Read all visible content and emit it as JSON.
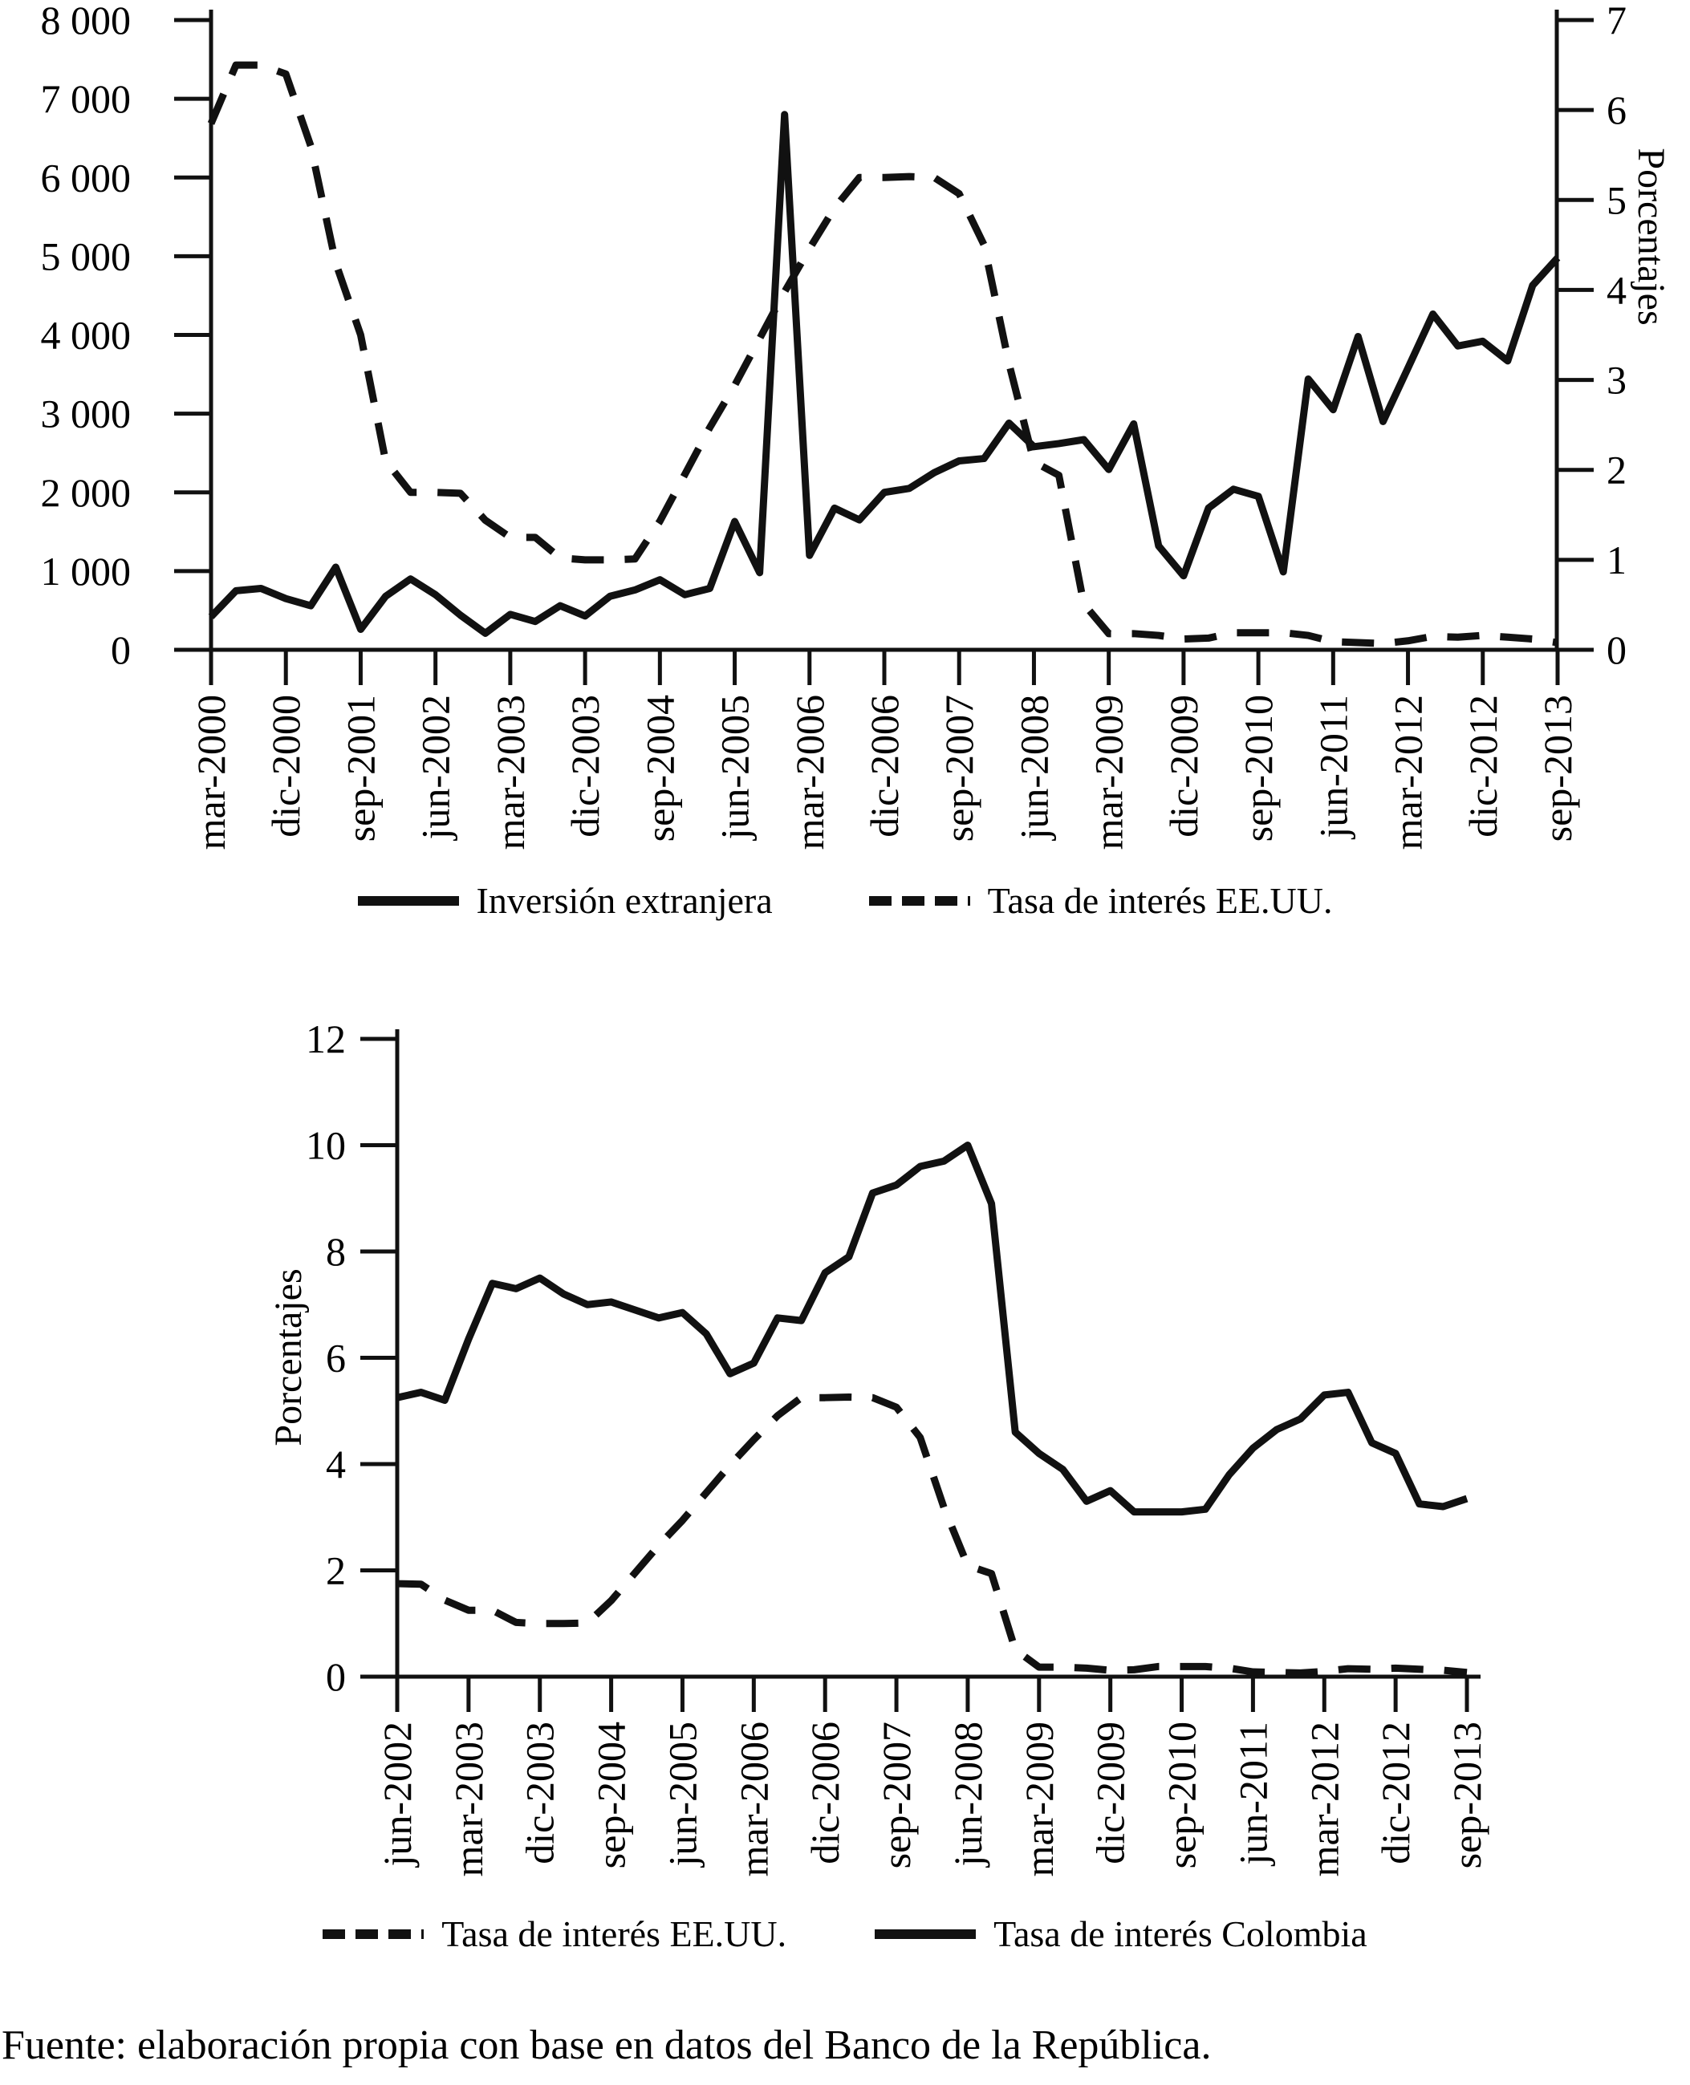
{
  "figure": {
    "background": "#ffffff",
    "line_color": "#111111",
    "source_note": "Fuente: elaboración propia con base en datos del Banco de la República."
  },
  "chart_data": [
    {
      "type": "line",
      "title": "",
      "categories": [
        "mar-2000",
        "jun-2000",
        "sep-2000",
        "dic-2000",
        "mar-2001",
        "jun-2001",
        "sep-2001",
        "dic-2001",
        "mar-2002",
        "jun-2002",
        "sep-2002",
        "dic-2002",
        "mar-2003",
        "jun-2003",
        "sep-2003",
        "dic-2003",
        "mar-2004",
        "jun-2004",
        "sep-2004",
        "dic-2004",
        "mar-2005",
        "jun-2005",
        "sep-2005",
        "dic-2005",
        "mar-2006",
        "jun-2006",
        "sep-2006",
        "dic-2006",
        "mar-2007",
        "jun-2007",
        "sep-2007",
        "dic-2007",
        "mar-2008",
        "jun-2008",
        "sep-2008",
        "dic-2008",
        "mar-2009",
        "jun-2009",
        "sep-2009",
        "dic-2009",
        "mar-2010",
        "jun-2010",
        "sep-2010",
        "dic-2010",
        "mar-2011",
        "jun-2011",
        "sep-2011",
        "dic-2011",
        "mar-2012",
        "jun-2012",
        "sep-2012",
        "dic-2012",
        "mar-2013",
        "jun-2013",
        "sep-2013"
      ],
      "x_tick_labels_shown": [
        "mar-2000",
        "dic-2000",
        "sep-2001",
        "jun-2002",
        "mar-2003",
        "dic-2003",
        "sep-2004",
        "jun-2005",
        "mar-2006",
        "dic-2006",
        "sep-2007",
        "jun-2008",
        "mar-2009",
        "dic-2009",
        "sep-2010",
        "jun-2011",
        "mar-2012",
        "dic-2012",
        "sep-2013"
      ],
      "series": [
        {
          "name": "Inversión extranjera",
          "style": "solid",
          "axis": "left",
          "values": [
            420,
            750,
            780,
            650,
            560,
            1050,
            260,
            680,
            900,
            700,
            440,
            210,
            450,
            360,
            560,
            430,
            680,
            760,
            890,
            700,
            780,
            1630,
            980,
            6800,
            1200,
            1800,
            1650,
            2000,
            2050,
            2250,
            2400,
            2430,
            2880,
            2580,
            2620,
            2670,
            2290,
            2870,
            1320,
            940,
            1800,
            2040,
            1950,
            990,
            3440,
            3050,
            3980,
            2900,
            3580,
            4265,
            3860,
            3920,
            3670,
            4630,
            4980
          ]
        },
        {
          "name": "Tasa de interés EE.UU.",
          "style": "dashed",
          "axis": "right",
          "values": [
            5.85,
            6.5,
            6.5,
            6.4,
            5.6,
            4.3,
            3.5,
            2.1,
            1.75,
            1.75,
            1.74,
            1.44,
            1.25,
            1.25,
            1.02,
            1.0,
            1.0,
            1.01,
            1.43,
            1.95,
            2.47,
            2.94,
            3.46,
            3.98,
            4.46,
            4.91,
            5.25,
            5.25,
            5.26,
            5.25,
            5.07,
            4.5,
            3.18,
            2.09,
            1.94,
            0.51,
            0.18,
            0.18,
            0.16,
            0.12,
            0.13,
            0.19,
            0.19,
            0.19,
            0.16,
            0.09,
            0.08,
            0.07,
            0.1,
            0.15,
            0.14,
            0.16,
            0.14,
            0.12,
            0.08
          ]
        }
      ],
      "left_axis": {
        "range": [
          0,
          8000
        ],
        "tick_step": 1000,
        "tick_labels": [
          "0",
          "1 000",
          "2 000",
          "3 000",
          "4 000",
          "5 000",
          "6 000",
          "7 000",
          "8 000"
        ]
      },
      "right_axis": {
        "label": "Porcentajes",
        "range": [
          0,
          7
        ],
        "tick_step": 1,
        "tick_labels": [
          "0",
          "1",
          "2",
          "3",
          "4",
          "5",
          "6",
          "7"
        ]
      },
      "grid": false,
      "legend_position": "bottom",
      "legend": [
        "Inversión extranjera",
        "Tasa de interés EE.UU."
      ]
    },
    {
      "type": "line",
      "title": "",
      "categories": [
        "jun-2002",
        "sep-2002",
        "dic-2002",
        "mar-2003",
        "jun-2003",
        "sep-2003",
        "dic-2003",
        "mar-2004",
        "jun-2004",
        "sep-2004",
        "dic-2004",
        "mar-2005",
        "jun-2005",
        "sep-2005",
        "dic-2005",
        "mar-2006",
        "jun-2006",
        "sep-2006",
        "dic-2006",
        "mar-2007",
        "jun-2007",
        "sep-2007",
        "dic-2007",
        "mar-2008",
        "jun-2008",
        "sep-2008",
        "dic-2008",
        "mar-2009",
        "jun-2009",
        "sep-2009",
        "dic-2009",
        "mar-2010",
        "jun-2010",
        "sep-2010",
        "dic-2010",
        "mar-2011",
        "jun-2011",
        "sep-2011",
        "dic-2011",
        "mar-2012",
        "jun-2012",
        "sep-2012",
        "dic-2012",
        "mar-2013",
        "jun-2013",
        "sep-2013"
      ],
      "x_tick_labels_shown": [
        "jun-2002",
        "mar-2003",
        "dic-2003",
        "sep-2004",
        "jun-2005",
        "mar-2006",
        "dic-2006",
        "sep-2007",
        "jun-2008",
        "mar-2009",
        "dic-2009",
        "sep-2010",
        "jun-2011",
        "mar-2012",
        "dic-2012",
        "sep-2013"
      ],
      "series": [
        {
          "name": "Tasa de interés EE.UU.",
          "style": "dashed",
          "axis": "left",
          "values": [
            1.75,
            1.74,
            1.44,
            1.25,
            1.25,
            1.02,
            1.0,
            1.0,
            1.01,
            1.43,
            1.95,
            2.47,
            2.94,
            3.46,
            3.98,
            4.46,
            4.91,
            5.25,
            5.25,
            5.26,
            5.25,
            5.07,
            4.5,
            3.18,
            2.09,
            1.94,
            0.51,
            0.18,
            0.18,
            0.16,
            0.12,
            0.13,
            0.19,
            0.19,
            0.19,
            0.16,
            0.09,
            0.08,
            0.07,
            0.1,
            0.15,
            0.14,
            0.16,
            0.14,
            0.12,
            0.08
          ]
        },
        {
          "name": "Tasa de interés Colombia",
          "style": "solid",
          "axis": "left",
          "values": [
            5.25,
            5.35,
            5.2,
            6.35,
            7.4,
            7.3,
            7.5,
            7.2,
            7.0,
            7.05,
            6.9,
            6.75,
            6.85,
            6.45,
            5.7,
            5.9,
            6.75,
            6.7,
            7.6,
            7.9,
            9.1,
            9.25,
            9.6,
            9.7,
            10.0,
            8.9,
            4.6,
            4.2,
            3.9,
            3.3,
            3.5,
            3.1,
            3.1,
            3.1,
            3.15,
            3.8,
            4.3,
            4.65,
            4.85,
            5.3,
            5.35,
            4.4,
            4.2,
            3.25,
            3.2,
            3.35
          ]
        }
      ],
      "left_axis": {
        "label": "Porcentajes",
        "range": [
          0,
          12
        ],
        "tick_step": 2,
        "tick_labels": [
          "0",
          "2",
          "4",
          "6",
          "8",
          "10",
          "12"
        ]
      },
      "grid": false,
      "legend_position": "bottom",
      "legend": [
        "Tasa de interés EE.UU.",
        "Tasa de interés Colombia"
      ]
    }
  ]
}
